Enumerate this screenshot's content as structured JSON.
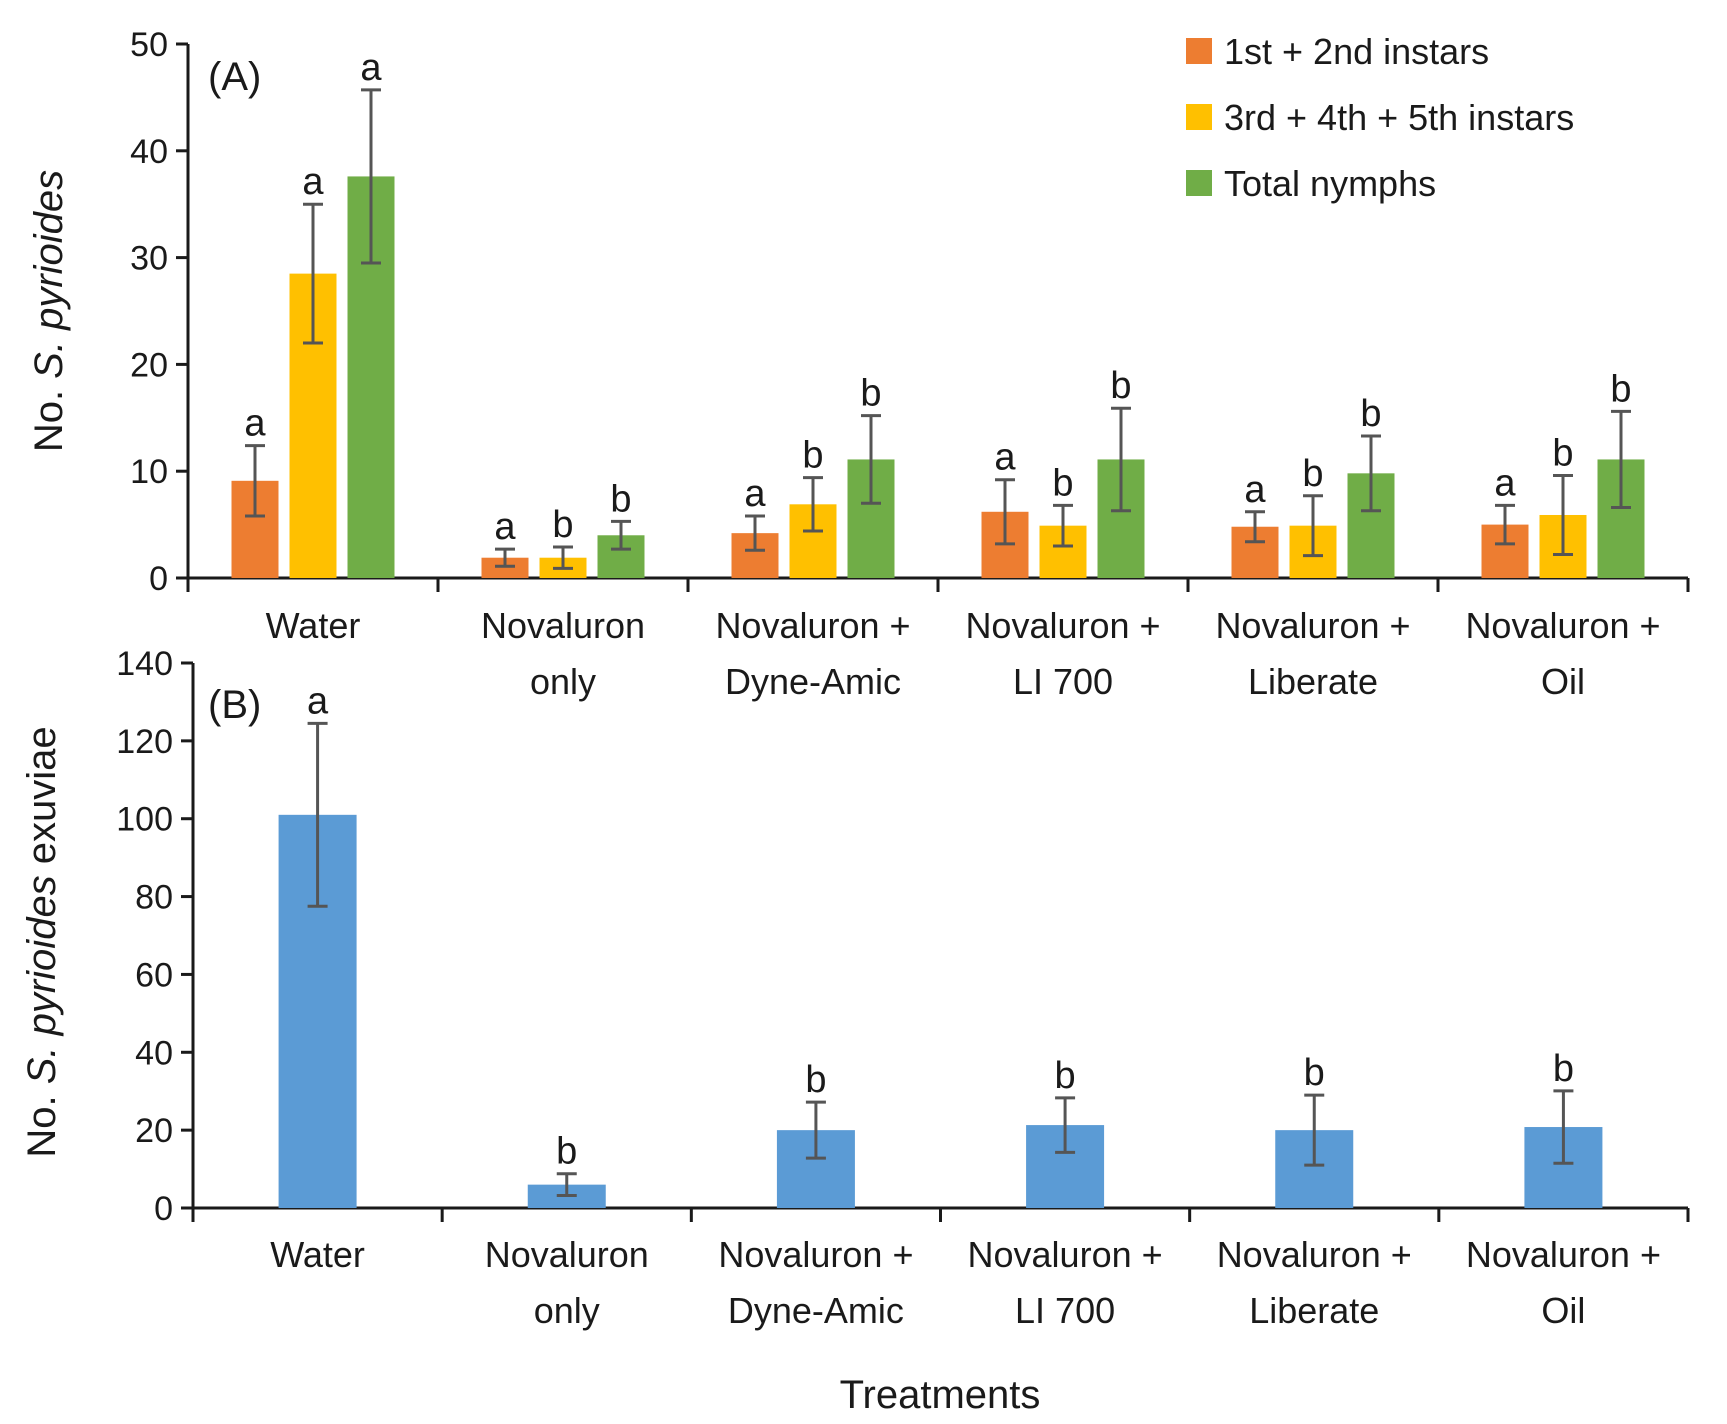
{
  "chart_data": [
    {
      "type": "bar",
      "panel_label": "(A)",
      "categories": [
        [
          "Water"
        ],
        [
          "Novaluron",
          "only"
        ],
        [
          "Novaluron +",
          "Dyne-Amic"
        ],
        [
          "Novaluron +",
          "LI 700"
        ],
        [
          "Novaluron +",
          "Liberate"
        ],
        [
          "Novaluron +",
          "Oil"
        ]
      ],
      "ylabel_prefix": "No. ",
      "ylabel_italic": "S. pyrioides",
      "ylabel_suffix": "",
      "ylim": [
        0,
        50
      ],
      "yticks": [
        0,
        10,
        20,
        30,
        40,
        50
      ],
      "legend_position": "top-right",
      "series": [
        {
          "name": "1st + 2nd instars",
          "color": "#ED7D31",
          "values": [
            9.1,
            1.9,
            4.2,
            6.2,
            4.8,
            5.0
          ],
          "errors": [
            3.3,
            0.8,
            1.6,
            3.0,
            1.4,
            1.8
          ],
          "letters": [
            "a",
            "a",
            "a",
            "a",
            "a",
            "a"
          ]
        },
        {
          "name": "3rd + 4th + 5th instars",
          "color": "#FFC000",
          "values": [
            28.5,
            1.9,
            6.9,
            4.9,
            4.9,
            5.9
          ],
          "errors": [
            6.5,
            1.0,
            2.5,
            1.9,
            2.8,
            3.7
          ],
          "letters": [
            "a",
            "b",
            "b",
            "b",
            "b",
            "b"
          ]
        },
        {
          "name": "Total nymphs",
          "color": "#70AD47",
          "values": [
            37.6,
            4.0,
            11.1,
            11.1,
            9.8,
            11.1
          ],
          "errors": [
            8.1,
            1.3,
            4.1,
            4.8,
            3.5,
            4.5
          ],
          "letters": [
            "a",
            "b",
            "b",
            "b",
            "b",
            "b"
          ]
        }
      ]
    },
    {
      "type": "bar",
      "panel_label": "(B)",
      "categories": [
        [
          "Water"
        ],
        [
          "Novaluron",
          "only"
        ],
        [
          "Novaluron +",
          "Dyne-Amic"
        ],
        [
          "Novaluron +",
          "LI 700"
        ],
        [
          "Novaluron +",
          "Liberate"
        ],
        [
          "Novaluron +",
          "Oil"
        ]
      ],
      "ylabel_prefix": "No. ",
      "ylabel_italic": "S. pyrioides",
      "ylabel_suffix": " exuviae",
      "xlabel": "Treatments",
      "ylim": [
        0,
        140
      ],
      "yticks": [
        0,
        20,
        40,
        60,
        80,
        100,
        120,
        140
      ],
      "series": [
        {
          "name": "Exuviae",
          "color": "#5B9BD5",
          "values": [
            101,
            6,
            20,
            21.3,
            20,
            20.8
          ],
          "errors": [
            23.5,
            2.8,
            7.2,
            7.0,
            9.0,
            9.3
          ],
          "letters": [
            "a",
            "b",
            "b",
            "b",
            "b",
            "b"
          ]
        }
      ]
    }
  ]
}
